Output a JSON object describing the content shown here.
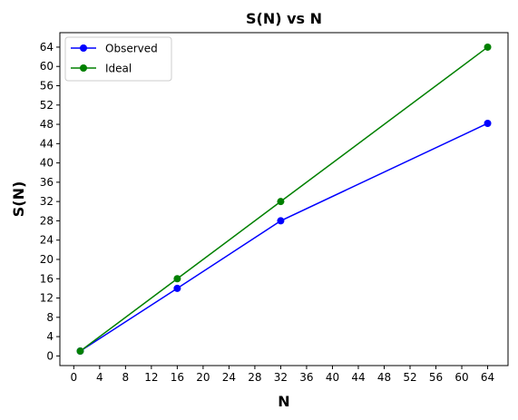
{
  "chart_data": {
    "type": "line",
    "title": "S(N) vs N",
    "xlabel": "N",
    "ylabel": "S(N)",
    "xlim": [
      -2.15,
      67.15
    ],
    "ylim": [
      -2.0,
      67.0
    ],
    "x_ticks": [
      0,
      4,
      8,
      12,
      16,
      20,
      24,
      28,
      32,
      36,
      40,
      44,
      48,
      52,
      56,
      60,
      64
    ],
    "y_ticks": [
      0,
      4,
      8,
      12,
      16,
      20,
      24,
      28,
      32,
      36,
      40,
      44,
      48,
      52,
      56,
      60,
      64
    ],
    "grid": false,
    "legend_position": "upper-left",
    "series": [
      {
        "name": "Observed",
        "color": "#0000ff",
        "x": [
          1,
          16,
          32,
          64
        ],
        "y": [
          1,
          14,
          28,
          48.2
        ]
      },
      {
        "name": "Ideal",
        "color": "#008000",
        "x": [
          1,
          16,
          32,
          64
        ],
        "y": [
          1,
          16,
          32,
          64
        ]
      }
    ]
  }
}
